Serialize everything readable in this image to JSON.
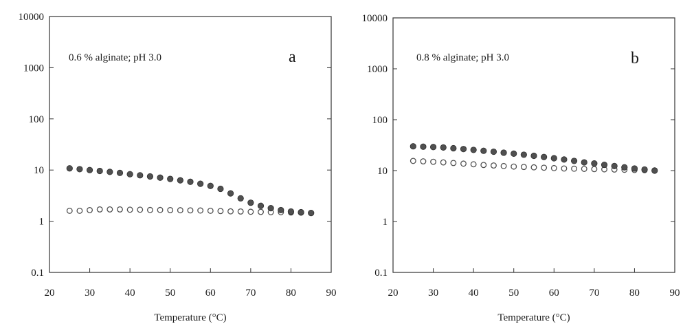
{
  "chart_data": [
    {
      "type": "scatter",
      "panel_letter": "a",
      "annotation": "0.6 % alginate; pH 3.0",
      "xlabel": "Temperature (°C)",
      "ylabel": "",
      "xlim": [
        20,
        90
      ],
      "ylim": [
        0.1,
        10000
      ],
      "y_scale": "log",
      "grid": false,
      "x_ticks": [
        "20",
        "30",
        "40",
        "50",
        "60",
        "70",
        "80",
        "90"
      ],
      "y_ticks": [
        "0.1",
        "1",
        "10",
        "100",
        "1000",
        "10000"
      ],
      "series": [
        {
          "marker": "filled-circle",
          "color": "#505050",
          "x": [
            25,
            27.5,
            30,
            32.5,
            35,
            37.5,
            40,
            42.5,
            45,
            47.5,
            50,
            52.5,
            55,
            57.5,
            60,
            62.5,
            65,
            67.5,
            70,
            72.5,
            75,
            77.5,
            80,
            82.5,
            85
          ],
          "y": [
            10.8,
            10.4,
            10.0,
            9.6,
            9.2,
            8.8,
            8.3,
            7.9,
            7.5,
            7.1,
            6.7,
            6.3,
            5.9,
            5.4,
            4.9,
            4.3,
            3.5,
            2.8,
            2.3,
            2.0,
            1.8,
            1.65,
            1.55,
            1.5,
            1.45
          ]
        },
        {
          "marker": "open-circle",
          "color": "#505050",
          "x": [
            25,
            27.5,
            30,
            32.5,
            35,
            37.5,
            40,
            42.5,
            45,
            47.5,
            50,
            52.5,
            55,
            57.5,
            60,
            62.5,
            65,
            67.5,
            70,
            72.5,
            75,
            77.5,
            80,
            82.5,
            85
          ],
          "y": [
            1.6,
            1.6,
            1.65,
            1.7,
            1.7,
            1.7,
            1.68,
            1.68,
            1.66,
            1.66,
            1.65,
            1.64,
            1.63,
            1.62,
            1.6,
            1.58,
            1.56,
            1.55,
            1.53,
            1.52,
            1.5,
            1.5,
            1.48,
            1.47,
            1.45
          ]
        }
      ]
    },
    {
      "type": "scatter",
      "panel_letter": "b",
      "annotation": "0.8 % alginate; pH 3.0",
      "xlabel": "Temperature (°C)",
      "ylabel": "",
      "xlim": [
        20,
        90
      ],
      "ylim": [
        0.1,
        10000
      ],
      "y_scale": "log",
      "grid": false,
      "x_ticks": [
        "20",
        "30",
        "40",
        "50",
        "60",
        "70",
        "80",
        "90"
      ],
      "y_ticks": [
        "0.1",
        "1",
        "10",
        "100",
        "1000",
        "10000"
      ],
      "series": [
        {
          "marker": "filled-circle",
          "color": "#505050",
          "x": [
            25,
            27.5,
            30,
            32.5,
            35,
            37.5,
            40,
            42.5,
            45,
            47.5,
            50,
            52.5,
            55,
            57.5,
            60,
            62.5,
            65,
            67.5,
            70,
            72.5,
            75,
            77.5,
            80,
            82.5,
            85
          ],
          "y": [
            30,
            29.5,
            29,
            28.5,
            27.5,
            26.5,
            25.5,
            24.5,
            23.5,
            22.5,
            21.5,
            20.5,
            19.5,
            18.5,
            17.5,
            16.5,
            15.5,
            14.5,
            13.8,
            13,
            12.3,
            11.6,
            11,
            10.5,
            10
          ]
        },
        {
          "marker": "open-circle",
          "color": "#505050",
          "x": [
            25,
            27.5,
            30,
            32.5,
            35,
            37.5,
            40,
            42.5,
            45,
            47.5,
            50,
            52.5,
            55,
            57.5,
            60,
            62.5,
            65,
            67.5,
            70,
            72.5,
            75,
            77.5,
            80,
            82.5,
            85
          ],
          "y": [
            15.5,
            15.2,
            14.9,
            14.5,
            14.1,
            13.7,
            13.3,
            12.9,
            12.6,
            12.3,
            12.0,
            11.8,
            11.6,
            11.4,
            11.2,
            11.0,
            10.9,
            10.8,
            10.7,
            10.6,
            10.5,
            10.4,
            10.3,
            10.2,
            10.1
          ]
        }
      ]
    }
  ]
}
